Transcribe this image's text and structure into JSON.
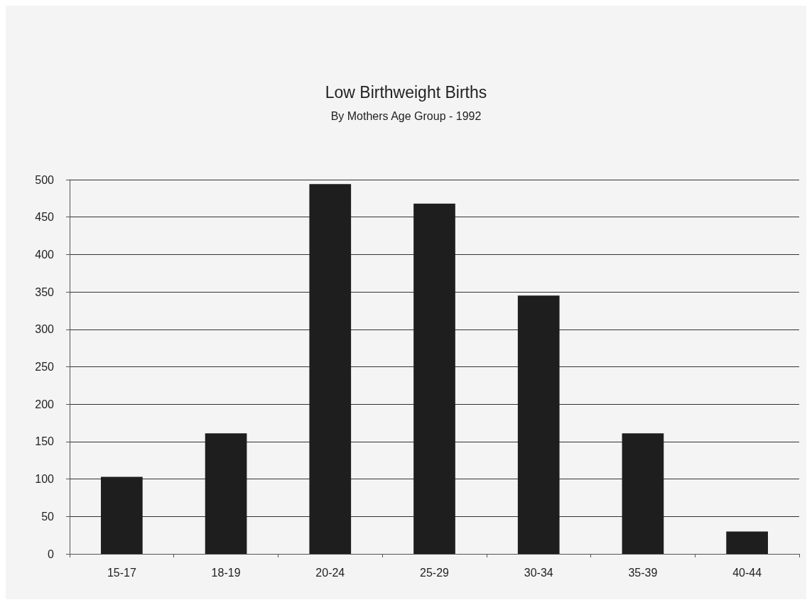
{
  "chart_data": {
    "type": "bar",
    "title": "Low Birthweight Births",
    "subtitle": "By Mothers Age Group - 1992",
    "categories": [
      "15-17",
      "18-19",
      "20-24",
      "25-29",
      "30-34",
      "35-39",
      "40-44"
    ],
    "values": [
      103,
      161,
      494,
      468,
      345,
      161,
      30
    ],
    "color": "#1e1e1e",
    "ylim": [
      0,
      500
    ],
    "yticks": [
      0,
      50,
      100,
      150,
      200,
      250,
      300,
      350,
      400,
      450,
      500
    ],
    "grid": "y"
  }
}
